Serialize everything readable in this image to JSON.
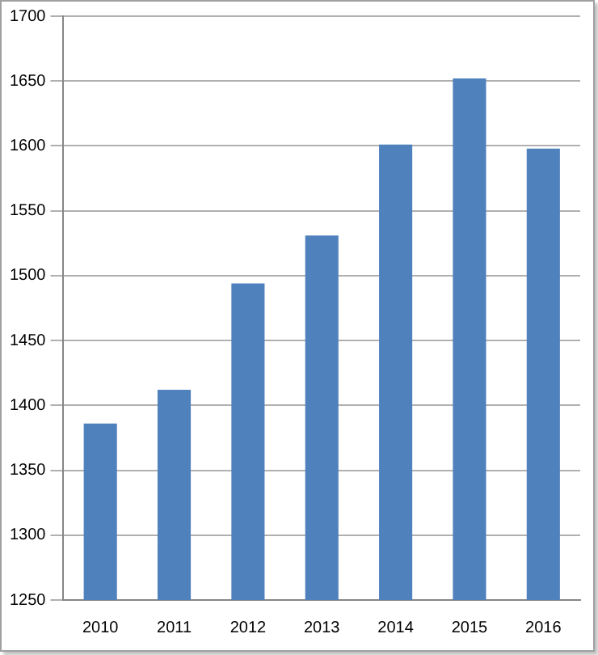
{
  "chart_data": {
    "type": "bar",
    "categories": [
      "2010",
      "2011",
      "2012",
      "2013",
      "2014",
      "2015",
      "2016"
    ],
    "values": [
      1386,
      1412,
      1494,
      1531,
      1601,
      1652,
      1598
    ],
    "color": "#4f81bd",
    "ylim": [
      1250,
      1700
    ],
    "yticks": [
      1250,
      1300,
      1350,
      1400,
      1450,
      1500,
      1550,
      1600,
      1650,
      1700
    ],
    "grid": "y",
    "legend": false
  }
}
